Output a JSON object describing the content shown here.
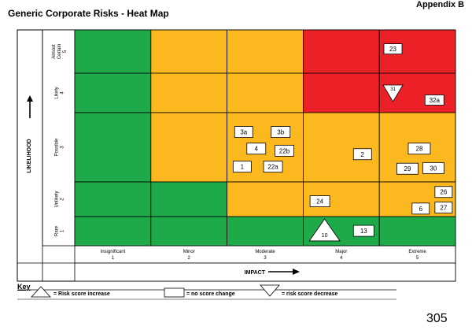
{
  "header": {
    "title": "Generic Corporate Risks - Heat Map",
    "appendix": "Appendix B"
  },
  "page_number": "305",
  "colors": {
    "green": "#1faa4a",
    "amber": "#fbb81f",
    "red": "#ec2027"
  },
  "chart_data": {
    "type": "heatmap",
    "title": "Generic Corporate Risks - Heat Map",
    "xlabel": "IMPACT",
    "ylabel": "LIKELIHOOD",
    "x_categories": [
      {
        "name": "Insignificant",
        "score": "1"
      },
      {
        "name": "Minor",
        "score": "2"
      },
      {
        "name": "Moderate",
        "score": "3"
      },
      {
        "name": "Major",
        "score": "4"
      },
      {
        "name": "Extreme",
        "score": "5"
      }
    ],
    "y_categories": [
      {
        "name": "Rare",
        "score": "1"
      },
      {
        "name": "Unlikely",
        "score": "2"
      },
      {
        "name": "Possible",
        "score": "3"
      },
      {
        "name": "Likely",
        "score": "4"
      },
      {
        "name": "Almost Certain",
        "score": "5"
      }
    ],
    "cell_colors": [
      [
        "green",
        "amber",
        "amber",
        "red",
        "red"
      ],
      [
        "green",
        "amber",
        "amber",
        "red",
        "red"
      ],
      [
        "green",
        "amber",
        "amber",
        "amber",
        "amber"
      ],
      [
        "green",
        "green",
        "amber",
        "amber",
        "amber"
      ],
      [
        "green",
        "green",
        "green",
        "green",
        "green"
      ]
    ],
    "risks": [
      {
        "id": "23",
        "impact": 5,
        "likelihood": 5,
        "trend": "no change"
      },
      {
        "id": "31",
        "impact": 5,
        "likelihood": 4,
        "trend": "decrease"
      },
      {
        "id": "32a",
        "impact": 5,
        "likelihood": 4,
        "trend": "no change"
      },
      {
        "id": "3a",
        "impact": 3,
        "likelihood": 3,
        "trend": "no change"
      },
      {
        "id": "3b",
        "impact": 3,
        "likelihood": 3,
        "trend": "no change"
      },
      {
        "id": "4",
        "impact": 3,
        "likelihood": 3,
        "trend": "no change"
      },
      {
        "id": "22b",
        "impact": 3,
        "likelihood": 3,
        "trend": "no change"
      },
      {
        "id": "1",
        "impact": 3,
        "likelihood": 3,
        "trend": "no change"
      },
      {
        "id": "22a",
        "impact": 3,
        "likelihood": 3,
        "trend": "no change"
      },
      {
        "id": "2",
        "impact": 4,
        "likelihood": 3,
        "trend": "no change"
      },
      {
        "id": "28",
        "impact": 5,
        "likelihood": 3,
        "trend": "no change"
      },
      {
        "id": "29",
        "impact": 5,
        "likelihood": 3,
        "trend": "no change"
      },
      {
        "id": "30",
        "impact": 5,
        "likelihood": 3,
        "trend": "no change"
      },
      {
        "id": "24",
        "impact": 4,
        "likelihood": 2,
        "trend": "no change"
      },
      {
        "id": "26",
        "impact": 5,
        "likelihood": 2,
        "trend": "no change"
      },
      {
        "id": "6",
        "impact": 5,
        "likelihood": 2,
        "trend": "no change"
      },
      {
        "id": "27",
        "impact": 5,
        "likelihood": 2,
        "trend": "no change"
      },
      {
        "id": "10",
        "impact": 4,
        "likelihood": 1,
        "trend": "increase"
      },
      {
        "id": "13",
        "impact": 4,
        "likelihood": 1,
        "trend": "no change"
      }
    ]
  },
  "key": {
    "title": "Key",
    "increase_label": "= Risk score increase",
    "no_change_label": "= no score change",
    "decrease_label": "= risk score decrease"
  }
}
